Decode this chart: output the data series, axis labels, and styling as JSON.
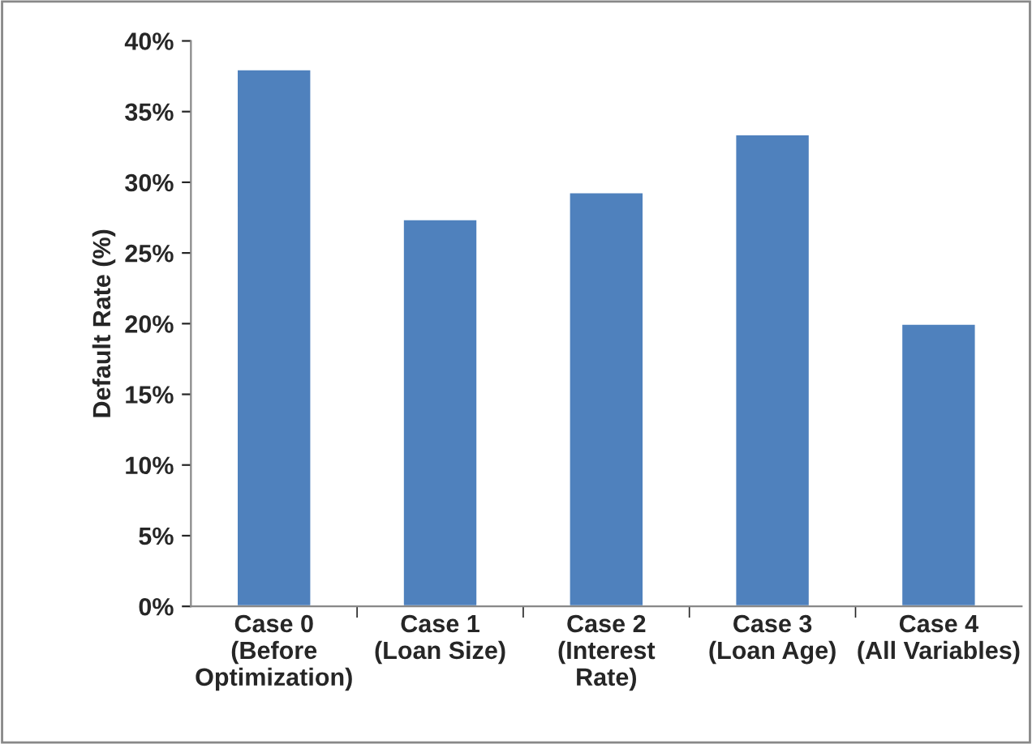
{
  "chart_data": {
    "type": "bar",
    "ylabel": "Default Rate (%)",
    "categories": [
      "Case 0\n(Before\nOptimization)",
      "Case 1\n(Loan Size)",
      "Case 2\n(Interest\nRate)",
      "Case 3\n(Loan Age)",
      "Case 4\n(All Variables)"
    ],
    "values": [
      38.0,
      27.4,
      29.3,
      33.4,
      20.0
    ],
    "color": "#4f81bd",
    "ylim": [
      0,
      40
    ],
    "yticks": [
      {
        "value": 0,
        "label": "0%"
      },
      {
        "value": 5,
        "label": "5%"
      },
      {
        "value": 10,
        "label": "10%"
      },
      {
        "value": 15,
        "label": "15%"
      },
      {
        "value": 20,
        "label": "20%"
      },
      {
        "value": 25,
        "label": "25%"
      },
      {
        "value": 30,
        "label": "30%"
      },
      {
        "value": 35,
        "label": "35%"
      },
      {
        "value": 40,
        "label": "40%"
      }
    ],
    "grid": false
  }
}
